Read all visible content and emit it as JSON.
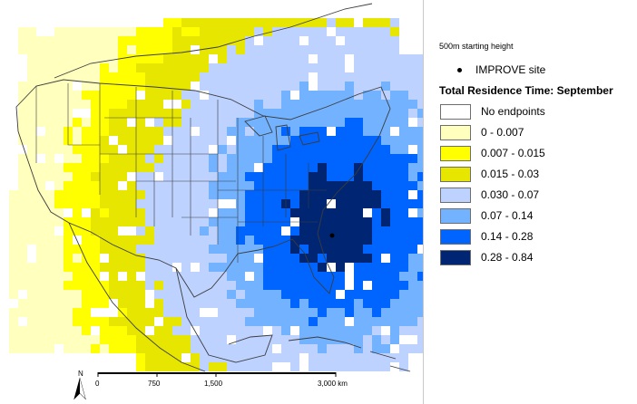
{
  "legend": {
    "starting_height": "500m starting height",
    "site_label": "IMPROVE site",
    "title": "Total Residence Time: September",
    "classes": [
      {
        "label": "No endpoints",
        "color": "#ffffff"
      },
      {
        "label": "0 - 0.007",
        "color": "#ffffbe"
      },
      {
        "label": "0.007 - 0.015",
        "color": "#ffff00"
      },
      {
        "label": "0.015 - 0.03",
        "color": "#e6e600"
      },
      {
        "label": "0.030 - 0.07",
        "color": "#bed2ff"
      },
      {
        "label": "0.07 - 0.14",
        "color": "#73b2ff"
      },
      {
        "label": "0.14 - 0.28",
        "color": "#0064ff"
      },
      {
        "label": "0.28 - 0.84",
        "color": "#002673"
      }
    ]
  },
  "scale_bar": {
    "ticks": [
      "0",
      "750",
      "1,500",
      "3,000 km"
    ]
  },
  "north_arrow": {
    "label": "N"
  }
}
